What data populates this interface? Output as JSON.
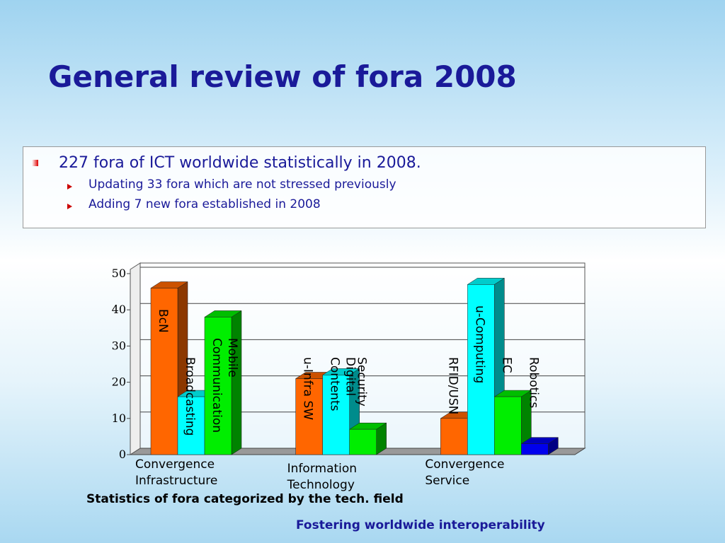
{
  "slide": {
    "title": "General review of fora 2008",
    "bullet": "227 fora of ICT worldwide statistically in 2008.",
    "sub_bullets": [
      "Updating 33 fora which are not stressed previously",
      "Adding 7 new fora established in 2008"
    ],
    "caption": "Statistics of fora categorized by the tech. field",
    "footer": "Fostering worldwide interoperability"
  },
  "chart_data": {
    "type": "bar3d",
    "groups": [
      {
        "name": "Convergence Infrastructure",
        "bars": [
          {
            "label": "BcN",
            "value": 46,
            "color": "#ff6600"
          },
          {
            "label": "Broadcasting",
            "value": 16,
            "color": "#00ffff"
          },
          {
            "label": "Mobile Communication",
            "value": 38,
            "color": "#00ee00"
          }
        ]
      },
      {
        "name": "Information Technology",
        "bars": [
          {
            "label": "u-Infra SW",
            "value": 21,
            "color": "#ff6600"
          },
          {
            "label": "Digital Contents",
            "value": 22,
            "color": "#00ffff"
          },
          {
            "label": "Security",
            "value": 7,
            "color": "#00ee00"
          }
        ]
      },
      {
        "name": "Convergence Service",
        "bars": [
          {
            "label": "RFID/USN",
            "value": 10,
            "color": "#ff6600"
          },
          {
            "label": "u-Computing",
            "value": 47,
            "color": "#00ffff"
          },
          {
            "label": "EC",
            "value": 16,
            "color": "#00ee00"
          },
          {
            "label": "Robotics",
            "value": 3,
            "color": "#0000ee"
          }
        ]
      }
    ],
    "ylim": [
      0,
      50
    ],
    "yticks": [
      0,
      10,
      20,
      30,
      40,
      50
    ],
    "grid": true
  }
}
